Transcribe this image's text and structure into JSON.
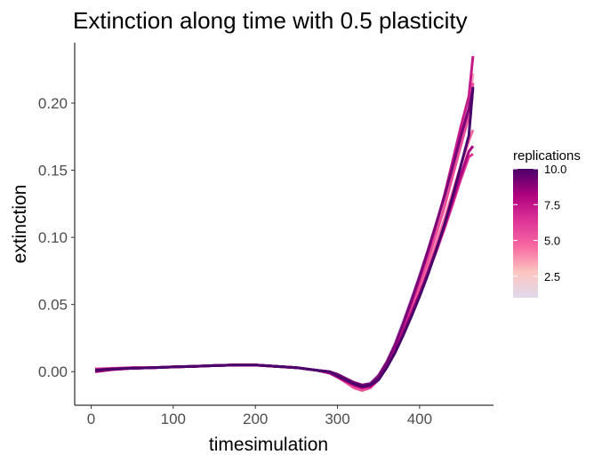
{
  "chart_data": {
    "type": "line",
    "title": "Extinction along time with 0.5 plasticity",
    "xlabel": "timesimulation",
    "ylabel": "extinction",
    "xlim": [
      -20,
      490
    ],
    "ylim": [
      -0.025,
      0.245
    ],
    "xticks": [
      0,
      100,
      200,
      300,
      400
    ],
    "xtick_labels": [
      "0",
      "100",
      "200",
      "300",
      "400"
    ],
    "yticks": [
      0.0,
      0.05,
      0.1,
      0.15,
      0.2
    ],
    "ytick_labels": [
      "0.00",
      "0.05",
      "0.10",
      "0.15",
      "0.20"
    ],
    "grid": false,
    "legend": {
      "title": "replications",
      "position": "right",
      "breaks": [
        2.5,
        5.0,
        7.5,
        10.0
      ],
      "break_labels": [
        "2.5",
        "5.0",
        "7.5",
        "10.0"
      ],
      "range": [
        1,
        10
      ],
      "colors": [
        "#e0d9ec",
        "#fcc5c0",
        "#f768a1",
        "#dd3497",
        "#ae017e",
        "#49006a"
      ]
    },
    "x": [
      5,
      25,
      50,
      75,
      100,
      125,
      150,
      175,
      200,
      225,
      250,
      275,
      290,
      300,
      310,
      320,
      330,
      340,
      350,
      360,
      370,
      380,
      390,
      400,
      410,
      420,
      430,
      440,
      450,
      460,
      465
    ],
    "series": [
      {
        "replication": 1,
        "color": "#e0d9ec",
        "values": [
          0.001,
          0.002,
          0.0025,
          0.003,
          0.0035,
          0.004,
          0.0045,
          0.005,
          0.005,
          0.004,
          0.003,
          0.001,
          0.0,
          -0.002,
          -0.005,
          -0.008,
          -0.01,
          -0.008,
          -0.002,
          0.008,
          0.022,
          0.038,
          0.055,
          0.072,
          0.09,
          0.11,
          0.13,
          0.155,
          0.18,
          0.205,
          0.22
        ]
      },
      {
        "replication": 2,
        "color": "#fcc5c0",
        "values": [
          0.002,
          0.002,
          0.003,
          0.003,
          0.0035,
          0.004,
          0.0045,
          0.005,
          0.005,
          0.004,
          0.003,
          0.001,
          -0.001,
          -0.003,
          -0.006,
          -0.009,
          -0.011,
          -0.009,
          -0.003,
          0.007,
          0.02,
          0.036,
          0.053,
          0.07,
          0.088,
          0.108,
          0.128,
          0.152,
          0.176,
          0.198,
          0.205
        ]
      },
      {
        "replication": 3,
        "color": "#fa9fb5",
        "values": [
          0.001,
          0.002,
          0.0025,
          0.003,
          0.0035,
          0.004,
          0.0045,
          0.005,
          0.0048,
          0.004,
          0.003,
          0.001,
          -0.001,
          -0.004,
          -0.007,
          -0.01,
          -0.012,
          -0.01,
          -0.004,
          0.006,
          0.019,
          0.034,
          0.051,
          0.068,
          0.086,
          0.105,
          0.125,
          0.148,
          0.172,
          0.195,
          0.222
        ]
      },
      {
        "replication": 4,
        "color": "#f768a1",
        "values": [
          0.0,
          0.0015,
          0.0025,
          0.003,
          0.0035,
          0.004,
          0.0045,
          0.005,
          0.005,
          0.004,
          0.003,
          0.001,
          0.0,
          -0.003,
          -0.006,
          -0.009,
          -0.011,
          -0.01,
          -0.005,
          0.004,
          0.016,
          0.03,
          0.045,
          0.06,
          0.077,
          0.095,
          0.113,
          0.133,
          0.153,
          0.172,
          0.18
        ]
      },
      {
        "replication": 5,
        "color": "#ec4f9a",
        "values": [
          0.002,
          0.0025,
          0.003,
          0.003,
          0.0035,
          0.004,
          0.0045,
          0.005,
          0.005,
          0.004,
          0.003,
          0.001,
          -0.001,
          -0.004,
          -0.008,
          -0.012,
          -0.014,
          -0.012,
          -0.006,
          0.004,
          0.017,
          0.032,
          0.048,
          0.065,
          0.083,
          0.102,
          0.122,
          0.145,
          0.168,
          0.19,
          0.215
        ]
      },
      {
        "replication": 6,
        "color": "#dd3497",
        "values": [
          0.001,
          0.002,
          0.0025,
          0.003,
          0.0035,
          0.004,
          0.0045,
          0.005,
          0.005,
          0.004,
          0.003,
          0.001,
          0.0,
          -0.002,
          -0.005,
          -0.008,
          -0.01,
          -0.009,
          -0.004,
          0.005,
          0.017,
          0.03,
          0.044,
          0.058,
          0.073,
          0.089,
          0.106,
          0.124,
          0.143,
          0.16,
          0.162
        ]
      },
      {
        "replication": 7,
        "color": "#c51b8a",
        "values": [
          0.002,
          0.002,
          0.003,
          0.003,
          0.0035,
          0.004,
          0.0045,
          0.005,
          0.005,
          0.004,
          0.003,
          0.001,
          -0.001,
          -0.003,
          -0.006,
          -0.009,
          -0.011,
          -0.01,
          -0.004,
          0.006,
          0.019,
          0.034,
          0.051,
          0.069,
          0.088,
          0.109,
          0.131,
          0.156,
          0.182,
          0.205,
          0.235
        ]
      },
      {
        "replication": 8,
        "color": "#ae017e",
        "values": [
          0.0,
          0.0015,
          0.0025,
          0.003,
          0.0035,
          0.004,
          0.0045,
          0.005,
          0.005,
          0.004,
          0.003,
          0.001,
          -0.001,
          -0.004,
          -0.007,
          -0.01,
          -0.012,
          -0.011,
          -0.006,
          0.003,
          0.015,
          0.029,
          0.043,
          0.058,
          0.074,
          0.091,
          0.108,
          0.127,
          0.146,
          0.164,
          0.168
        ]
      },
      {
        "replication": 9,
        "color": "#7a0177",
        "values": [
          0.001,
          0.002,
          0.0025,
          0.003,
          0.0035,
          0.004,
          0.0045,
          0.005,
          0.005,
          0.004,
          0.003,
          0.001,
          0.0,
          -0.002,
          -0.005,
          -0.008,
          -0.01,
          -0.009,
          -0.003,
          0.007,
          0.02,
          0.036,
          0.053,
          0.071,
          0.09,
          0.11,
          0.13,
          0.152,
          0.175,
          0.196,
          0.21
        ]
      },
      {
        "replication": 10,
        "color": "#49006a",
        "values": [
          0.001,
          0.002,
          0.0025,
          0.003,
          0.0035,
          0.004,
          0.0045,
          0.005,
          0.005,
          0.004,
          0.003,
          0.001,
          0.0,
          -0.003,
          -0.006,
          -0.009,
          -0.011,
          -0.01,
          -0.006,
          0.003,
          0.014,
          0.027,
          0.041,
          0.056,
          0.072,
          0.09,
          0.109,
          0.13,
          0.153,
          0.176,
          0.212
        ]
      }
    ]
  }
}
